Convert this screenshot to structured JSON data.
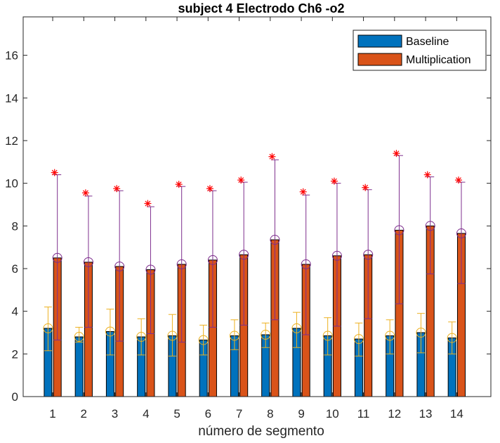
{
  "chart_data": {
    "type": "bar",
    "title": "subject 4 Electrodo Ch6 -o2",
    "xlabel": "número de segmento",
    "ylabel": "",
    "categories": [
      "1",
      "2",
      "3",
      "4",
      "5",
      "6",
      "7",
      "8",
      "9",
      "10",
      "11",
      "12",
      "13",
      "14"
    ],
    "ylim": [
      0,
      17.8
    ],
    "yticks": [
      0,
      2,
      4,
      6,
      8,
      10,
      12,
      14,
      16
    ],
    "grid": false,
    "legend_position": "top-right",
    "series": [
      {
        "name": "Baseline",
        "color": "#0072BD",
        "values": [
          3.2,
          2.8,
          3.05,
          2.8,
          2.85,
          2.65,
          2.85,
          2.9,
          3.2,
          2.85,
          2.7,
          2.85,
          3.0,
          2.75
        ],
        "error_lower": [
          2.15,
          2.55,
          1.95,
          1.95,
          1.9,
          1.95,
          2.2,
          2.3,
          2.3,
          1.95,
          1.9,
          2.0,
          2.05,
          2.0
        ],
        "error_upper": [
          4.2,
          3.25,
          4.1,
          3.65,
          3.85,
          3.35,
          3.6,
          3.45,
          3.95,
          3.7,
          3.45,
          3.6,
          3.9,
          3.5
        ],
        "error_color": "#EDB120"
      },
      {
        "name": "Multiplication",
        "color": "#D95319",
        "values": [
          6.5,
          6.3,
          6.1,
          5.95,
          6.2,
          6.4,
          6.65,
          7.35,
          6.2,
          6.6,
          6.65,
          7.8,
          8.0,
          7.65
        ],
        "error_lower": [
          2.65,
          3.25,
          2.6,
          2.95,
          2.55,
          3.25,
          3.35,
          3.6,
          2.9,
          3.3,
          3.65,
          4.35,
          5.75,
          5.3
        ],
        "error_upper": [
          10.4,
          9.4,
          9.65,
          8.9,
          9.85,
          9.65,
          10.05,
          11.1,
          9.45,
          10.0,
          9.7,
          11.3,
          10.3,
          10.05
        ],
        "error_color": "#7E2F8E",
        "max_markers": [
          10.5,
          9.55,
          9.75,
          9.05,
          9.95,
          9.75,
          10.15,
          11.25,
          9.6,
          10.1,
          9.8,
          11.4,
          10.4,
          10.15
        ],
        "max_marker_color": "#FF0000"
      }
    ]
  }
}
